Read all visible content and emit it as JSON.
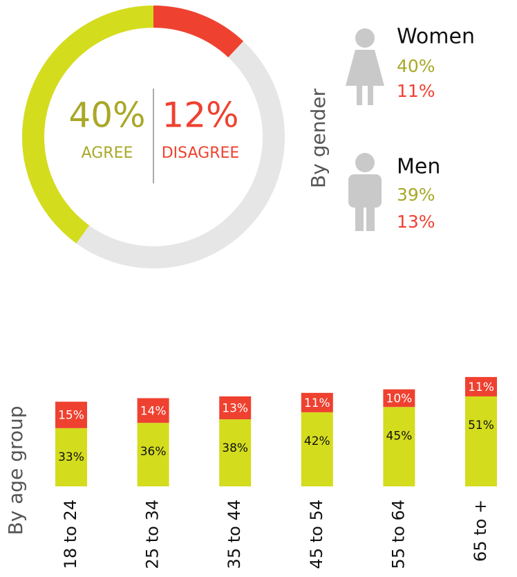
{
  "chart_data": [
    {
      "type": "pie",
      "categories": [
        "AGREE",
        "DISAGREE"
      ],
      "values": [
        40,
        12
      ],
      "value_labels": [
        "40%",
        "12%"
      ],
      "colors": [
        "#d4dc1e",
        "#ef4130"
      ],
      "label_colors": [
        "#a8a828",
        "#ef4130"
      ]
    },
    {
      "type": "stacked-bar",
      "axis_label": "By age group",
      "categories": [
        "18 to 24",
        "25 to 34",
        "35 to 44",
        "45 to 54",
        "55 to 64",
        "65 to +"
      ],
      "series": [
        {
          "color": "#d4dc1e",
          "values": [
            33,
            36,
            38,
            42,
            45,
            51
          ],
          "value_labels": [
            "33%",
            "36%",
            "38%",
            "42%",
            "45%",
            "51%"
          ]
        },
        {
          "color": "#ef4130",
          "values": [
            15,
            14,
            13,
            11,
            10,
            11
          ],
          "value_labels": [
            "15%",
            "14%",
            "13%",
            "11%",
            "10%",
            "11%"
          ]
        }
      ]
    }
  ],
  "gender": {
    "label": "By gender",
    "groups": [
      {
        "name": "Women",
        "agree": "40%",
        "disagree": "11%"
      },
      {
        "name": "Men",
        "agree": "39%",
        "disagree": "13%"
      }
    ]
  }
}
